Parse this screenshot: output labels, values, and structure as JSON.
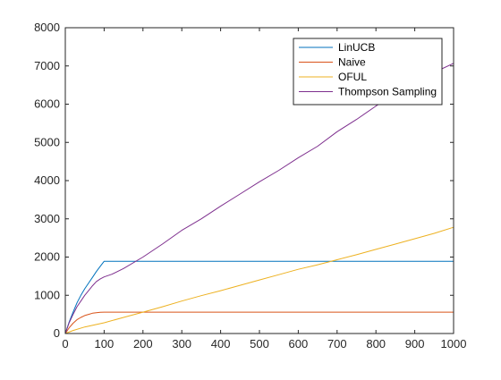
{
  "chart_data": {
    "type": "line",
    "title": "",
    "xlabel": "",
    "ylabel": "",
    "xlim": [
      0,
      1000
    ],
    "ylim": [
      0,
      8000
    ],
    "xticks": [
      0,
      100,
      200,
      300,
      400,
      500,
      600,
      700,
      800,
      900,
      1000
    ],
    "yticks": [
      0,
      1000,
      2000,
      3000,
      4000,
      5000,
      6000,
      7000,
      8000
    ],
    "xtick_labels": [
      "0",
      "100",
      "200",
      "300",
      "400",
      "500",
      "600",
      "700",
      "800",
      "900",
      "1000"
    ],
    "ytick_labels": [
      "0",
      "1000",
      "2000",
      "3000",
      "4000",
      "5000",
      "6000",
      "7000",
      "8000"
    ],
    "grid": false,
    "legend_position": "top-right",
    "series": [
      {
        "name": "LinUCB",
        "color": "#0072BD",
        "x": [
          0,
          10,
          20,
          30,
          40,
          50,
          60,
          70,
          80,
          90,
          100,
          150,
          200,
          300,
          400,
          500,
          600,
          700,
          800,
          900,
          1000
        ],
        "y": [
          0,
          300,
          560,
          800,
          1000,
          1170,
          1320,
          1470,
          1620,
          1760,
          1890,
          1890,
          1890,
          1890,
          1890,
          1890,
          1890,
          1890,
          1890,
          1890,
          1890
        ]
      },
      {
        "name": "Naive",
        "color": "#D95319",
        "x": [
          0,
          10,
          20,
          30,
          40,
          50,
          60,
          70,
          80,
          90,
          100,
          150,
          200,
          300,
          400,
          500,
          600,
          700,
          800,
          900,
          1000
        ],
        "y": [
          0,
          150,
          270,
          360,
          420,
          470,
          500,
          530,
          545,
          555,
          560,
          560,
          560,
          560,
          560,
          560,
          560,
          560,
          560,
          560,
          560
        ]
      },
      {
        "name": "OFUL",
        "color": "#EDB120",
        "x": [
          0,
          20,
          50,
          100,
          150,
          200,
          250,
          300,
          350,
          400,
          450,
          500,
          550,
          600,
          650,
          700,
          750,
          800,
          850,
          900,
          950,
          1000
        ],
        "y": [
          0,
          80,
          170,
          280,
          420,
          560,
          700,
          850,
          990,
          1120,
          1260,
          1400,
          1540,
          1680,
          1800,
          1930,
          2060,
          2200,
          2340,
          2480,
          2620,
          2780
        ]
      },
      {
        "name": "Thompson Sampling",
        "color": "#7E2F8E",
        "x": [
          0,
          10,
          20,
          30,
          40,
          50,
          60,
          70,
          80,
          90,
          100,
          120,
          150,
          200,
          250,
          300,
          350,
          400,
          450,
          500,
          550,
          600,
          650,
          700,
          750,
          800,
          850,
          900,
          950,
          1000
        ],
        "y": [
          0,
          280,
          500,
          700,
          850,
          1000,
          1120,
          1250,
          1360,
          1430,
          1480,
          1550,
          1700,
          2000,
          2340,
          2700,
          3000,
          3330,
          3650,
          3970,
          4270,
          4600,
          4900,
          5280,
          5600,
          5950,
          6270,
          6560,
          6830,
          7070
        ]
      }
    ]
  }
}
